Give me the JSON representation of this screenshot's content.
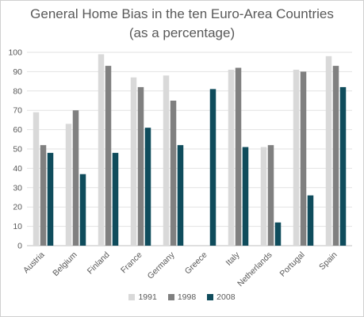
{
  "chart_data": {
    "type": "bar",
    "title_line1": "General Home Bias in the ten Euro-Area Countries",
    "title_line2": "(as a percentage)",
    "categories": [
      "Austria",
      "Belgium",
      "Finland",
      "France",
      "Germany",
      "Greece",
      "Italy",
      "Netherlands",
      "Portugal",
      "Spain"
    ],
    "series": [
      {
        "name": "1991",
        "color": "#d9d9d9",
        "values": [
          69,
          63,
          99,
          87,
          88,
          null,
          91,
          51,
          91,
          98
        ]
      },
      {
        "name": "1998",
        "color": "#808080",
        "values": [
          52,
          70,
          93,
          82,
          75,
          null,
          92,
          52,
          90,
          93
        ]
      },
      {
        "name": "2008",
        "color": "#0f4c5c",
        "values": [
          48,
          37,
          48,
          61,
          52,
          81,
          51,
          12,
          26,
          82
        ]
      }
    ],
    "yticks": [
      0,
      10,
      20,
      30,
      40,
      50,
      60,
      70,
      80,
      90,
      100
    ],
    "ylim": [
      0,
      100
    ],
    "grid": true,
    "legend_position": "bottom"
  }
}
